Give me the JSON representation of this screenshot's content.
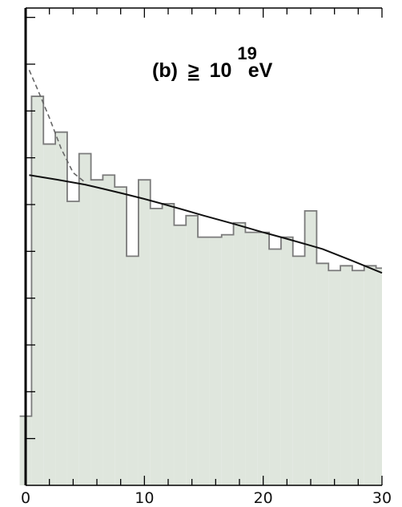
{
  "chart_data": {
    "type": "histogram",
    "annotation": {
      "prefix": "(b)",
      "operator": "≥",
      "base": "10",
      "exponent": "19",
      "unit": "eV"
    },
    "xlim": [
      0,
      30
    ],
    "x_ticks": [
      0,
      10,
      20,
      30
    ],
    "x_tick_labels": [
      "0",
      "10",
      "20",
      "30"
    ],
    "y_ticks_count": 10,
    "bin_width": 1,
    "bins": [
      {
        "x0": -0.5,
        "x1": 0.5,
        "value": 2.9
      },
      {
        "x0": 0.5,
        "x1": 1.5,
        "value": 16.3
      },
      {
        "x0": 1.5,
        "x1": 2.5,
        "value": 14.3
      },
      {
        "x0": 2.5,
        "x1": 3.5,
        "value": 14.8
      },
      {
        "x0": 3.5,
        "x1": 4.5,
        "value": 11.9
      },
      {
        "x0": 4.5,
        "x1": 5.5,
        "value": 13.9
      },
      {
        "x0": 5.5,
        "x1": 6.5,
        "value": 12.8
      },
      {
        "x0": 6.5,
        "x1": 7.5,
        "value": 13.0
      },
      {
        "x0": 7.5,
        "x1": 8.5,
        "value": 12.5
      },
      {
        "x0": 8.5,
        "x1": 9.5,
        "value": 9.6
      },
      {
        "x0": 9.5,
        "x1": 10.5,
        "value": 12.8
      },
      {
        "x0": 10.5,
        "x1": 11.5,
        "value": 11.6
      },
      {
        "x0": 11.5,
        "x1": 12.5,
        "value": 11.8
      },
      {
        "x0": 12.5,
        "x1": 13.5,
        "value": 10.9
      },
      {
        "x0": 13.5,
        "x1": 14.5,
        "value": 11.3
      },
      {
        "x0": 14.5,
        "x1": 15.5,
        "value": 10.4
      },
      {
        "x0": 15.5,
        "x1": 16.5,
        "value": 10.4
      },
      {
        "x0": 16.5,
        "x1": 17.5,
        "value": 10.5
      },
      {
        "x0": 17.5,
        "x1": 18.5,
        "value": 11.0
      },
      {
        "x0": 18.5,
        "x1": 19.5,
        "value": 10.6
      },
      {
        "x0": 19.5,
        "x1": 20.5,
        "value": 10.6
      },
      {
        "x0": 20.5,
        "x1": 21.5,
        "value": 9.9
      },
      {
        "x0": 21.5,
        "x1": 22.5,
        "value": 10.4
      },
      {
        "x0": 22.5,
        "x1": 23.5,
        "value": 9.6
      },
      {
        "x0": 23.5,
        "x1": 24.5,
        "value": 11.5
      },
      {
        "x0": 24.5,
        "x1": 25.5,
        "value": 9.3
      },
      {
        "x0": 25.5,
        "x1": 26.5,
        "value": 9.0
      },
      {
        "x0": 26.5,
        "x1": 27.5,
        "value": 9.2
      },
      {
        "x0": 27.5,
        "x1": 28.5,
        "value": 9.0
      },
      {
        "x0": 28.5,
        "x1": 29.5,
        "value": 9.2
      },
      {
        "x0": 29.5,
        "x1": 30.5,
        "value": 9.1
      }
    ],
    "fit_solid": {
      "x": [
        0.3,
        5,
        10,
        15,
        20,
        25,
        30
      ],
      "y": [
        13.0,
        12.6,
        12.0,
        11.3,
        10.6,
        9.9,
        8.9
      ]
    },
    "fit_dashed": {
      "x": [
        0.3,
        1,
        2,
        3,
        4,
        5
      ],
      "y": [
        17.4,
        16.6,
        15.4,
        14.1,
        13.1,
        12.7
      ]
    },
    "ylim": [
      0,
      20
    ],
    "fill_color": "#dfe6dd",
    "hist_line_color": "#7b7b7b",
    "fit_color": "#111111",
    "dashed_color": "#666666"
  }
}
